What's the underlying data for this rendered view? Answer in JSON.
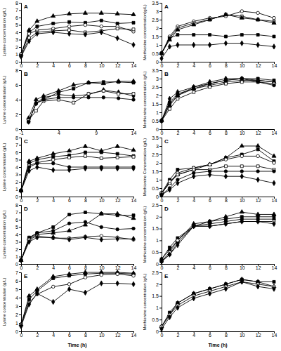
{
  "chart_data": [
    {
      "type": "line",
      "title": "A",
      "ylabel": "Lysine concentration (g/L)",
      "x": [
        0,
        1,
        2,
        4,
        6,
        8,
        10,
        12,
        14
      ],
      "xlim": [
        0,
        14
      ],
      "xticks": [
        0,
        2,
        4,
        6,
        8,
        10,
        12,
        14
      ],
      "ylim": [
        0,
        8
      ],
      "yticks": [
        0,
        1,
        2,
        3,
        4,
        5,
        6,
        7,
        8
      ],
      "series": [
        {
          "color": "#000000",
          "marker": "triangle",
          "values": [
            1.0,
            4.3,
            5.5,
            6.2,
            6.5,
            6.6,
            6.6,
            6.5,
            6.4
          ]
        },
        {
          "color": "#000000",
          "marker": "square",
          "values": [
            1.0,
            4.0,
            4.8,
            5.2,
            5.4,
            5.3,
            5.6,
            5.2,
            5.3
          ]
        },
        {
          "color": "#000000",
          "marker": "circle-open",
          "values": [
            1.0,
            3.8,
            4.3,
            4.5,
            4.8,
            5.0,
            4.8,
            4.8,
            4.1
          ]
        },
        {
          "color": "#000000",
          "marker": "square-open",
          "values": [
            0.8,
            3.2,
            4.0,
            4.2,
            4.3,
            4.0,
            4.2,
            4.5,
            4.4
          ]
        },
        {
          "color": "#000000",
          "marker": "diamond",
          "values": [
            0.7,
            2.8,
            3.8,
            4.0,
            3.8,
            3.7,
            4.0,
            3.2,
            2.3
          ]
        }
      ]
    },
    {
      "type": "line",
      "title": "A",
      "ylabel": "Methionine concentration(g/L)",
      "x": [
        0,
        1,
        2,
        4,
        6,
        8,
        10,
        12,
        14
      ],
      "xlim": [
        0,
        14
      ],
      "xticks": [
        0,
        2,
        4,
        6,
        8,
        10,
        12,
        14
      ],
      "ylim": [
        0,
        3.5
      ],
      "yticks": [
        0,
        0.5,
        1,
        1.5,
        2,
        2.5,
        3,
        3.5
      ],
      "series": [
        {
          "color": "#000000",
          "marker": "circle-open",
          "values": [
            0.5,
            1.5,
            2.1,
            2.4,
            2.6,
            2.7,
            3.0,
            2.9,
            2.6
          ]
        },
        {
          "color": "#000000",
          "marker": "square-open",
          "values": [
            0.5,
            1.4,
            2.0,
            2.3,
            2.5,
            2.8,
            2.7,
            2.5,
            2.4
          ]
        },
        {
          "color": "#000000",
          "marker": "triangle",
          "values": [
            0.5,
            1.3,
            1.9,
            2.2,
            2.5,
            2.8,
            2.6,
            2.5,
            2.3
          ]
        },
        {
          "color": "#000000",
          "marker": "square",
          "values": [
            0.5,
            1.4,
            1.6,
            1.6,
            1.6,
            1.5,
            1.6,
            1.6,
            1.5
          ]
        },
        {
          "color": "#000000",
          "marker": "diamond",
          "values": [
            0.2,
            0.9,
            1.0,
            1.0,
            1.0,
            1.1,
            1.1,
            1.0,
            0.9
          ]
        }
      ]
    },
    {
      "type": "line",
      "title": "B",
      "ylabel": "Lysine concentration (g/L)",
      "x": [
        0,
        1,
        2,
        4,
        6,
        8,
        10,
        12,
        14
      ],
      "xlim": [
        -1,
        14
      ],
      "xticks": [
        -1,
        4,
        9,
        14
      ],
      "ylim": [
        0,
        8
      ],
      "yticks": [
        0,
        2,
        4,
        6,
        8
      ],
      "series": [
        {
          "color": "#000000",
          "marker": "square",
          "values": [
            1.0,
            3.5,
            4.0,
            5.0,
            5.5,
            6.3,
            6.4,
            6.4,
            6.3
          ]
        },
        {
          "color": "#000000",
          "marker": "triangle",
          "values": [
            1.5,
            4.0,
            4.5,
            5.2,
            6.0,
            6.3,
            6.2,
            6.5,
            6.5
          ]
        },
        {
          "color": "#000000",
          "marker": "diamond",
          "values": [
            1.0,
            3.5,
            4.3,
            4.7,
            4.5,
            4.7,
            5.3,
            5.0,
            4.5
          ]
        },
        {
          "color": "#000000",
          "marker": "square-open",
          "values": [
            1.2,
            2.5,
            3.8,
            4.0,
            3.6,
            4.8,
            5.2,
            4.8,
            4.8
          ]
        },
        {
          "color": "#000000",
          "marker": "circle",
          "values": [
            1.0,
            3.5,
            4.0,
            4.3,
            4.3,
            4.3,
            4.3,
            4.2,
            4.0
          ]
        }
      ]
    },
    {
      "type": "line",
      "title": "B",
      "ylabel": "Methionine concentration (g/L)",
      "x": [
        0,
        1,
        2,
        4,
        6,
        8,
        10,
        12,
        14
      ],
      "xlim": [
        0,
        14
      ],
      "xticks": [
        0,
        2,
        4,
        6,
        8,
        10,
        12,
        14
      ],
      "ylim": [
        0,
        3.5
      ],
      "yticks": [
        0,
        0.5,
        1,
        1.5,
        2,
        2.5,
        3,
        3.5
      ],
      "series": [
        {
          "color": "#000000",
          "marker": "diamond",
          "values": [
            0.5,
            1.8,
            2.2,
            2.5,
            2.8,
            3.0,
            3.0,
            2.9,
            2.8
          ]
        },
        {
          "color": "#000000",
          "marker": "square",
          "values": [
            0.5,
            1.5,
            2.0,
            2.5,
            2.7,
            2.9,
            3.0,
            3.0,
            2.9
          ]
        },
        {
          "color": "#000000",
          "marker": "triangle",
          "values": [
            0.5,
            1.4,
            2.0,
            2.4,
            2.6,
            2.8,
            2.9,
            2.9,
            2.8
          ]
        },
        {
          "color": "#000000",
          "marker": "square-open",
          "values": [
            0.5,
            1.2,
            1.8,
            2.2,
            2.5,
            2.7,
            2.8,
            2.8,
            2.7
          ]
        },
        {
          "color": "#000000",
          "marker": "circle",
          "values": [
            0.5,
            1.6,
            2.1,
            2.4,
            2.7,
            2.9,
            3.0,
            2.8,
            2.6
          ]
        }
      ]
    },
    {
      "type": "line",
      "title": "C",
      "ylabel": "Lysine concentration (g/L)",
      "x": [
        0,
        1,
        2,
        4,
        6,
        8,
        10,
        12,
        14
      ],
      "xlim": [
        0,
        14
      ],
      "xticks": [
        0,
        2,
        4,
        6,
        8,
        10,
        12,
        14
      ],
      "ylim": [
        0,
        8
      ],
      "yticks": [
        0,
        1,
        2,
        3,
        4,
        5,
        6,
        7,
        8
      ],
      "series": [
        {
          "color": "#000000",
          "marker": "triangle",
          "values": [
            0.8,
            4.8,
            5.2,
            5.8,
            6.2,
            6.8,
            6.2,
            6.8,
            6.3
          ]
        },
        {
          "color": "#000000",
          "marker": "square",
          "values": [
            0.8,
            4.5,
            5.0,
            5.4,
            5.6,
            6.0,
            6.0,
            5.8,
            5.5
          ]
        },
        {
          "color": "#000000",
          "marker": "square-open",
          "values": [
            0.8,
            4.2,
            4.6,
            5.0,
            5.3,
            5.5,
            5.2,
            5.3,
            5.4
          ]
        },
        {
          "color": "#000000",
          "marker": "circle",
          "values": [
            0.8,
            4.0,
            4.5,
            4.5,
            4.0,
            4.0,
            4.0,
            4.0,
            4.0
          ]
        },
        {
          "color": "#000000",
          "marker": "diamond",
          "values": [
            0.8,
            3.5,
            4.0,
            3.6,
            3.6,
            3.8,
            3.8,
            3.8,
            3.8
          ]
        }
      ]
    },
    {
      "type": "line",
      "title": "C",
      "ylabel": "Methionine Concentration (g/L)",
      "x": [
        0,
        1,
        2,
        4,
        6,
        8,
        10,
        12,
        14
      ],
      "xlim": [
        0,
        14
      ],
      "xticks": [
        0,
        2,
        4,
        6,
        8,
        10,
        12,
        14
      ],
      "ylim": [
        0,
        3.5
      ],
      "yticks": [
        0,
        0.5,
        1,
        1.5,
        2,
        2.5,
        3,
        3.5
      ],
      "series": [
        {
          "color": "#000000",
          "marker": "triangle",
          "values": [
            0.2,
            0.8,
            1.3,
            1.6,
            1.9,
            2.3,
            3.0,
            3.0,
            2.4
          ]
        },
        {
          "color": "#000000",
          "marker": "square",
          "values": [
            0.2,
            1.0,
            1.6,
            1.7,
            1.9,
            2.3,
            2.5,
            2.8,
            2.1
          ]
        },
        {
          "color": "#000000",
          "marker": "circle-open",
          "values": [
            0.2,
            0.8,
            1.4,
            1.7,
            1.9,
            2.2,
            2.4,
            2.4,
            2.0
          ]
        },
        {
          "color": "#000000",
          "marker": "square-open",
          "values": [
            0.2,
            0.9,
            1.3,
            1.6,
            1.6,
            1.8,
            1.8,
            1.8,
            1.6
          ]
        },
        {
          "color": "#000000",
          "marker": "circle",
          "values": [
            0.1,
            0.5,
            1.0,
            1.4,
            1.5,
            1.5,
            1.5,
            1.5,
            1.5
          ]
        },
        {
          "color": "#000000",
          "marker": "diamond",
          "values": [
            0.1,
            0.4,
            0.8,
            1.2,
            1.3,
            1.2,
            1.2,
            1.0,
            0.8
          ]
        }
      ]
    },
    {
      "type": "line",
      "title": "D",
      "ylabel": "Lysine concentration (g/L)",
      "x": [
        0,
        1,
        2,
        4,
        6,
        8,
        10,
        12,
        14
      ],
      "xlim": [
        0,
        14
      ],
      "xticks": [
        0,
        2,
        4,
        6,
        8,
        10,
        12,
        14
      ],
      "ylim": [
        0,
        8
      ],
      "yticks": [
        0,
        1,
        2,
        3,
        4,
        5,
        6,
        7,
        8
      ],
      "series": [
        {
          "color": "#000000",
          "marker": "square",
          "values": [
            0.5,
            3.6,
            4.2,
            5.0,
            6.7,
            7.0,
            6.8,
            6.6,
            6.6
          ]
        },
        {
          "color": "#000000",
          "marker": "triangle",
          "values": [
            0.5,
            3.4,
            4.0,
            4.2,
            4.5,
            5.3,
            6.8,
            6.8,
            6.2
          ]
        },
        {
          "color": "#000000",
          "marker": "circle",
          "values": [
            0.5,
            3.5,
            4.2,
            4.5,
            5.5,
            5.7,
            5.0,
            4.7,
            4.8
          ]
        },
        {
          "color": "#000000",
          "marker": "circle-open",
          "values": [
            0.5,
            3.3,
            3.8,
            3.5,
            3.5,
            3.7,
            3.8,
            3.6,
            3.3
          ]
        },
        {
          "color": "#000000",
          "marker": "diamond",
          "values": [
            0.5,
            3.0,
            3.6,
            3.6,
            3.3,
            3.6,
            3.3,
            3.4,
            3.4
          ]
        }
      ]
    },
    {
      "type": "line",
      "title": "D",
      "ylabel": "Methionine concentration (g/L)",
      "x": [
        0,
        1,
        2,
        4,
        6,
        8,
        10,
        12,
        14
      ],
      "xlim": [
        0,
        14
      ],
      "xticks": [
        0,
        2,
        4,
        6,
        8,
        10,
        12,
        14
      ],
      "ylim": [
        0,
        2.5
      ],
      "yticks": [
        0,
        0.5,
        1,
        1.5,
        2,
        2.5
      ],
      "series": [
        {
          "color": "#000000",
          "marker": "triangle",
          "values": [
            0.2,
            0.6,
            1.0,
            1.7,
            1.8,
            2.0,
            2.2,
            2.1,
            2.1
          ]
        },
        {
          "color": "#000000",
          "marker": "square",
          "values": [
            0.2,
            0.7,
            1.1,
            1.6,
            1.8,
            1.9,
            2.0,
            2.0,
            2.0
          ]
        },
        {
          "color": "#000000",
          "marker": "circle",
          "values": [
            0.1,
            0.4,
            0.9,
            1.6,
            1.7,
            1.8,
            1.9,
            1.9,
            1.9
          ]
        },
        {
          "color": "#000000",
          "marker": "circle-open",
          "values": [
            0.1,
            0.5,
            1.0,
            1.6,
            1.6,
            1.7,
            1.8,
            1.8,
            1.8
          ]
        },
        {
          "color": "#000000",
          "marker": "diamond",
          "values": [
            0.1,
            0.4,
            0.8,
            1.6,
            1.6,
            1.7,
            1.8,
            1.8,
            1.7
          ]
        }
      ]
    },
    {
      "type": "line",
      "title": "E",
      "ylabel": "Lysine concentration (g/L)",
      "xlabel": "Time (h)",
      "x": [
        0,
        1,
        2,
        4,
        6,
        8,
        10,
        12,
        14
      ],
      "xlim": [
        0,
        14
      ],
      "xticks": [
        0,
        2,
        4,
        6,
        8,
        10,
        12,
        14
      ],
      "ylim": [
        0,
        7
      ],
      "yticks": [
        0,
        1,
        2,
        3,
        4,
        5,
        6,
        7
      ],
      "series": [
        {
          "color": "#000000",
          "marker": "triangle",
          "values": [
            0.8,
            4.2,
            5.0,
            6.5,
            6.8,
            7.0,
            7.0,
            7.0,
            6.9
          ]
        },
        {
          "color": "#000000",
          "marker": "square",
          "values": [
            0.8,
            3.8,
            4.8,
            6.3,
            6.6,
            6.8,
            6.9,
            6.9,
            6.8
          ]
        },
        {
          "color": "#000000",
          "marker": "circle-open",
          "values": [
            0.8,
            3.4,
            4.4,
            5.3,
            5.6,
            6.4,
            6.7,
            6.8,
            6.6
          ]
        },
        {
          "color": "#000000",
          "marker": "diamond",
          "values": [
            0.6,
            3.2,
            4.5,
            3.5,
            5.0,
            4.6,
            5.7,
            5.7,
            5.6
          ]
        }
      ]
    },
    {
      "type": "line",
      "title": "E",
      "ylabel": "Methionine concentration (g/L)",
      "xlabel": "Time (h)",
      "x": [
        0,
        1,
        2,
        4,
        6,
        8,
        10,
        12,
        14
      ],
      "xlim": [
        0,
        14
      ],
      "xticks": [
        0,
        2,
        4,
        6,
        8,
        10,
        12,
        14
      ],
      "ylim": [
        0,
        2.5
      ],
      "yticks": [
        0,
        0.5,
        1,
        1.5,
        2,
        2.5
      ],
      "series": [
        {
          "color": "#000000",
          "marker": "square",
          "values": [
            0.2,
            0.8,
            1.2,
            1.6,
            1.8,
            2.0,
            2.2,
            2.1,
            2.1
          ]
        },
        {
          "color": "#000000",
          "marker": "triangle",
          "values": [
            0.2,
            0.7,
            1.2,
            1.6,
            1.8,
            2.0,
            2.2,
            2.1,
            1.9
          ]
        },
        {
          "color": "#000000",
          "marker": "circle-open",
          "values": [
            0.2,
            0.7,
            1.1,
            1.5,
            1.7,
            1.9,
            2.1,
            2.0,
            1.9
          ]
        },
        {
          "color": "#000000",
          "marker": "diamond",
          "values": [
            0.1,
            0.6,
            1.0,
            1.4,
            1.6,
            1.8,
            2.1,
            1.9,
            1.8
          ]
        }
      ]
    }
  ]
}
